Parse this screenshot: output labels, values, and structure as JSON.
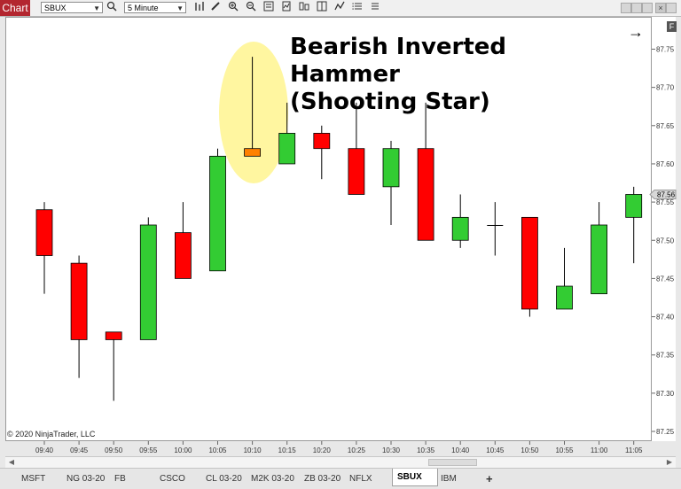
{
  "toolbar": {
    "chart_tab_label": "Chart",
    "instrument_value": "SBUX",
    "interval_value": "5 Minute",
    "icons": [
      "search-icon",
      "bar-chart-icon",
      "pencil-icon",
      "zoom-in-icon",
      "zoom-out-icon",
      "properties-icon",
      "indicators-icon",
      "strategies-icon",
      "drawing-tools-icon",
      "data-box-icon",
      "list-icon"
    ]
  },
  "annotation": {
    "title_line1": "Bearish Inverted Hammer",
    "title_line2": "(Shooting Star)",
    "highlight_color": "#fff6a0"
  },
  "copyright": "© 2020 NinjaTrader, LLC",
  "panel_button": "F",
  "colors": {
    "up": "#33cc33",
    "down": "#ff0000",
    "highlight_candle": "#ff8000",
    "wick": "#000000",
    "last_price_tag": "#d8d8d8"
  },
  "chart_data": {
    "type": "candlestick",
    "ylim": [
      87.235,
      87.805
    ],
    "y_ticks": [
      87.25,
      87.3,
      87.35,
      87.4,
      87.45,
      87.5,
      87.55,
      87.6,
      87.65,
      87.7,
      87.75
    ],
    "y_tick_labels": [
      "87.25",
      "87.30",
      "87.35",
      "87.40",
      "87.45",
      "87.50",
      "87.55",
      "87.60",
      "87.65",
      "87.70",
      "87.75"
    ],
    "last_price": "87.56",
    "categories": [
      "09:40",
      "09:45",
      "09:50",
      "09:55",
      "10:00",
      "10:05",
      "10:10",
      "10:15",
      "10:20",
      "10:25",
      "10:30",
      "10:35",
      "10:40",
      "10:45",
      "10:50",
      "10:55",
      "11:00",
      "11:05"
    ],
    "candles": [
      {
        "time": "09:40",
        "open": 87.54,
        "high": 87.55,
        "low": 87.43,
        "close": 87.48
      },
      {
        "time": "09:45",
        "open": 87.47,
        "high": 87.48,
        "low": 87.32,
        "close": 87.37
      },
      {
        "time": "09:50",
        "open": 87.38,
        "high": 87.38,
        "low": 87.29,
        "close": 87.37
      },
      {
        "time": "09:55",
        "open": 87.37,
        "high": 87.53,
        "low": 87.37,
        "close": 87.52
      },
      {
        "time": "10:00",
        "open": 87.51,
        "high": 87.55,
        "low": 87.45,
        "close": 87.45
      },
      {
        "time": "10:05",
        "open": 87.46,
        "high": 87.62,
        "low": 87.46,
        "close": 87.61
      },
      {
        "time": "10:10",
        "open": 87.62,
        "high": 87.74,
        "low": 87.61,
        "close": 87.61,
        "highlight": true
      },
      {
        "time": "10:15",
        "open": 87.6,
        "high": 87.68,
        "low": 87.6,
        "close": 87.64
      },
      {
        "time": "10:20",
        "open": 87.64,
        "high": 87.65,
        "low": 87.58,
        "close": 87.62
      },
      {
        "time": "10:25",
        "open": 87.62,
        "high": 87.68,
        "low": 87.56,
        "close": 87.56
      },
      {
        "time": "10:30",
        "open": 87.57,
        "high": 87.63,
        "low": 87.52,
        "close": 87.62
      },
      {
        "time": "10:35",
        "open": 87.62,
        "high": 87.68,
        "low": 87.5,
        "close": 87.5
      },
      {
        "time": "10:40",
        "open": 87.5,
        "high": 87.56,
        "low": 87.49,
        "close": 87.53
      },
      {
        "time": "10:45",
        "open": 87.52,
        "high": 87.55,
        "low": 87.48,
        "close": 87.52
      },
      {
        "time": "10:50",
        "open": 87.53,
        "high": 87.53,
        "low": 87.4,
        "close": 87.41
      },
      {
        "time": "10:55",
        "open": 87.41,
        "high": 87.49,
        "low": 87.41,
        "close": 87.44
      },
      {
        "time": "11:00",
        "open": 87.43,
        "high": 87.55,
        "low": 87.43,
        "close": 87.52
      },
      {
        "time": "11:05",
        "open": 87.53,
        "high": 87.57,
        "low": 87.47,
        "close": 87.56
      }
    ],
    "grid": false,
    "legend": "none"
  },
  "instrument_tabs": [
    {
      "label": "MSFT",
      "active": false
    },
    {
      "label": "NG 03-20",
      "active": false
    },
    {
      "label": "FB",
      "active": false
    },
    {
      "label": "CSCO",
      "active": false
    },
    {
      "label": "CL 03-20",
      "active": false
    },
    {
      "label": "M2K 03-20",
      "active": false
    },
    {
      "label": "ZB 03-20",
      "active": false
    },
    {
      "label": "NFLX",
      "active": false
    },
    {
      "label": "SBUX",
      "active": true
    },
    {
      "label": "IBM",
      "active": false
    }
  ],
  "add_tab_label": "+"
}
